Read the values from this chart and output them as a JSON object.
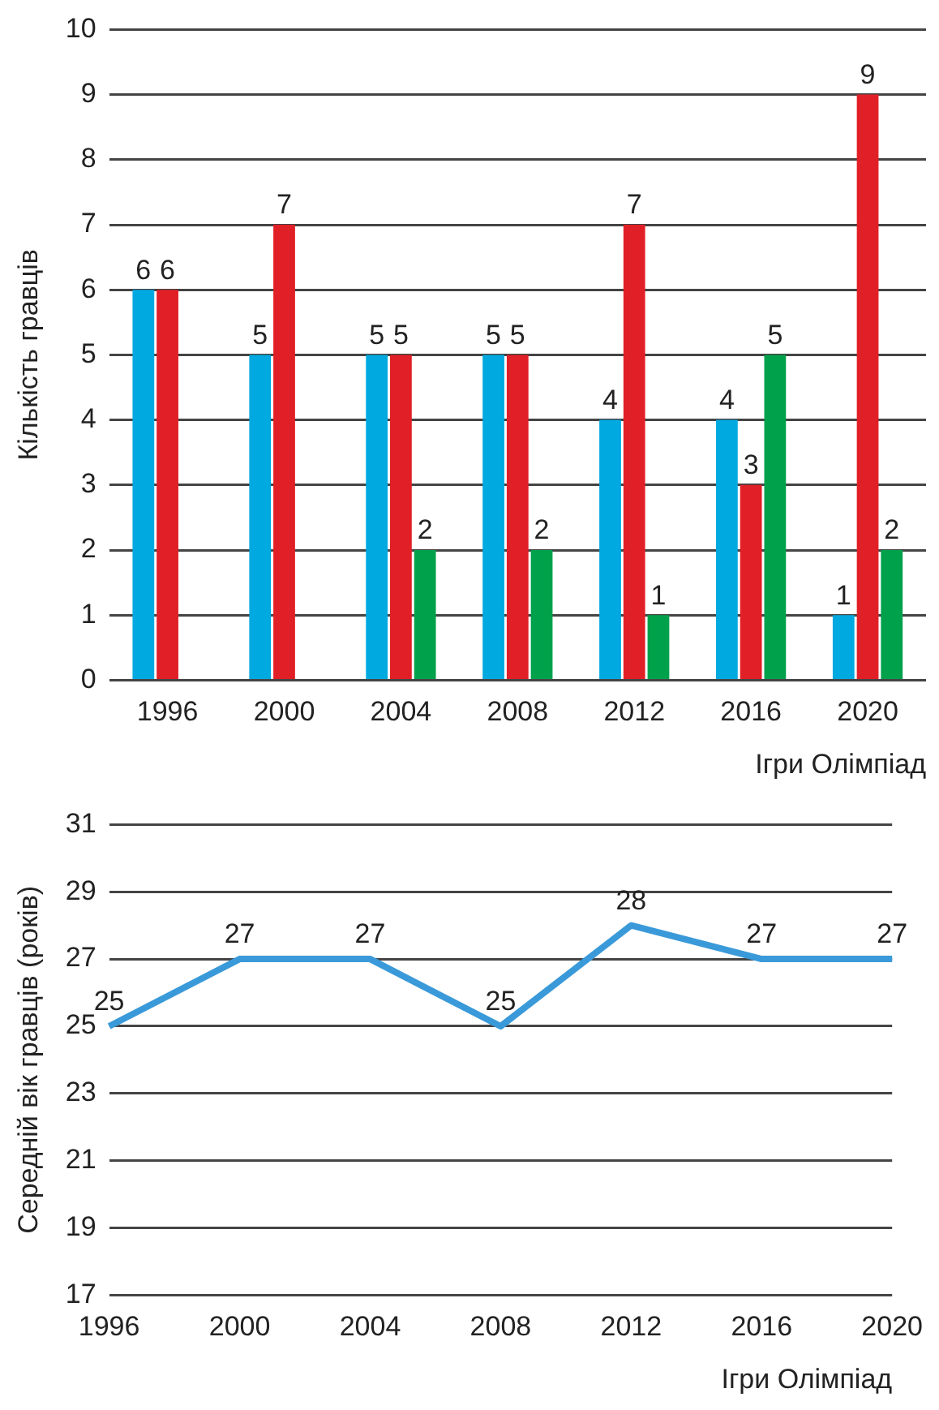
{
  "chart_data": [
    {
      "type": "bar",
      "ylabel": "Кількість гравців",
      "xlabel": "Ігри Олімпіад",
      "categories": [
        "1996",
        "2000",
        "2004",
        "2008",
        "2012",
        "2016",
        "2020"
      ],
      "series": [
        {
          "color": "#00a9e0",
          "values": [
            6,
            5,
            5,
            5,
            4,
            4,
            1
          ]
        },
        {
          "color": "#e11f26",
          "values": [
            6,
            7,
            5,
            5,
            7,
            3,
            9
          ]
        },
        {
          "color": "#00a14b",
          "values": [
            null,
            null,
            2,
            2,
            1,
            5,
            2
          ]
        }
      ],
      "ylim": [
        0,
        10
      ],
      "yticks": [
        0,
        1,
        2,
        3,
        4,
        5,
        6,
        7,
        8,
        9,
        10
      ],
      "grid": "y",
      "data_labels": true
    },
    {
      "type": "line",
      "ylabel": "Середній вік гравців (років)",
      "xlabel": "Ігри Олімпіад",
      "categories": [
        "1996",
        "2000",
        "2004",
        "2008",
        "2012",
        "2016",
        "2020"
      ],
      "series": [
        {
          "color": "#3a9ad9",
          "values": [
            25,
            27,
            27,
            25,
            28,
            27,
            27
          ]
        }
      ],
      "ylim": [
        17,
        31
      ],
      "yticks": [
        17,
        19,
        21,
        23,
        25,
        27,
        29,
        31
      ],
      "grid": "y",
      "marker": "none",
      "data_labels": true
    }
  ]
}
